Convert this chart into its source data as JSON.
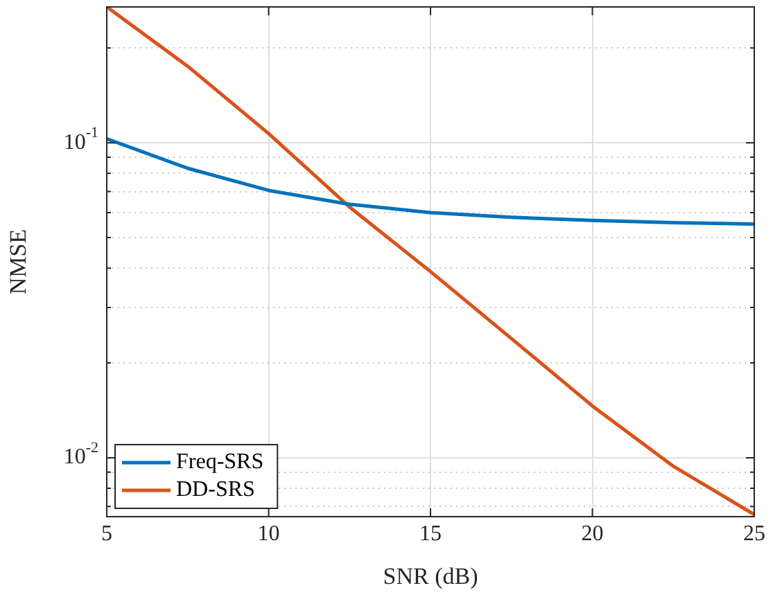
{
  "chart_data": {
    "type": "line",
    "xlabel": "SNR (dB)",
    "ylabel": "NMSE",
    "x": [
      5,
      7.5,
      10,
      12.5,
      15,
      17.5,
      20,
      22.5,
      25
    ],
    "series": [
      {
        "name": "Freq-SRS",
        "color": "#0072bd",
        "values": [
          0.103,
          0.083,
          0.0706,
          0.0638,
          0.06,
          0.058,
          0.0567,
          0.0558,
          0.0552
        ]
      },
      {
        "name": "DD-SRS",
        "color": "#d95319",
        "values": [
          0.27,
          0.175,
          0.107,
          0.0625,
          0.039,
          0.0239,
          0.0146,
          0.0094,
          0.0066
        ]
      }
    ],
    "log": "y",
    "xlim": [
      5,
      25
    ],
    "xticks": [
      5,
      10,
      15,
      20,
      25
    ],
    "ylim": [
      0.0065,
      0.27
    ],
    "yticks": [
      {
        "value": 0.007,
        "label": null
      },
      {
        "value": 0.008,
        "label": null
      },
      {
        "value": 0.009,
        "label": null
      },
      {
        "value": 0.01,
        "label": "10$^{-2}$"
      },
      {
        "value": 0.02,
        "label": null
      },
      {
        "value": 0.03,
        "label": null
      },
      {
        "value": 0.04,
        "label": null
      },
      {
        "value": 0.05,
        "label": null
      },
      {
        "value": 0.06,
        "label": null
      },
      {
        "value": 0.07,
        "label": null
      },
      {
        "value": 0.08,
        "label": null
      },
      {
        "value": 0.09,
        "label": null
      },
      {
        "value": 0.1,
        "label": "10$^{-1}$"
      },
      {
        "value": 0.2,
        "label": null
      }
    ],
    "grid": true,
    "legend": "bottom left",
    "marker": "none",
    "line_style": "solid"
  }
}
